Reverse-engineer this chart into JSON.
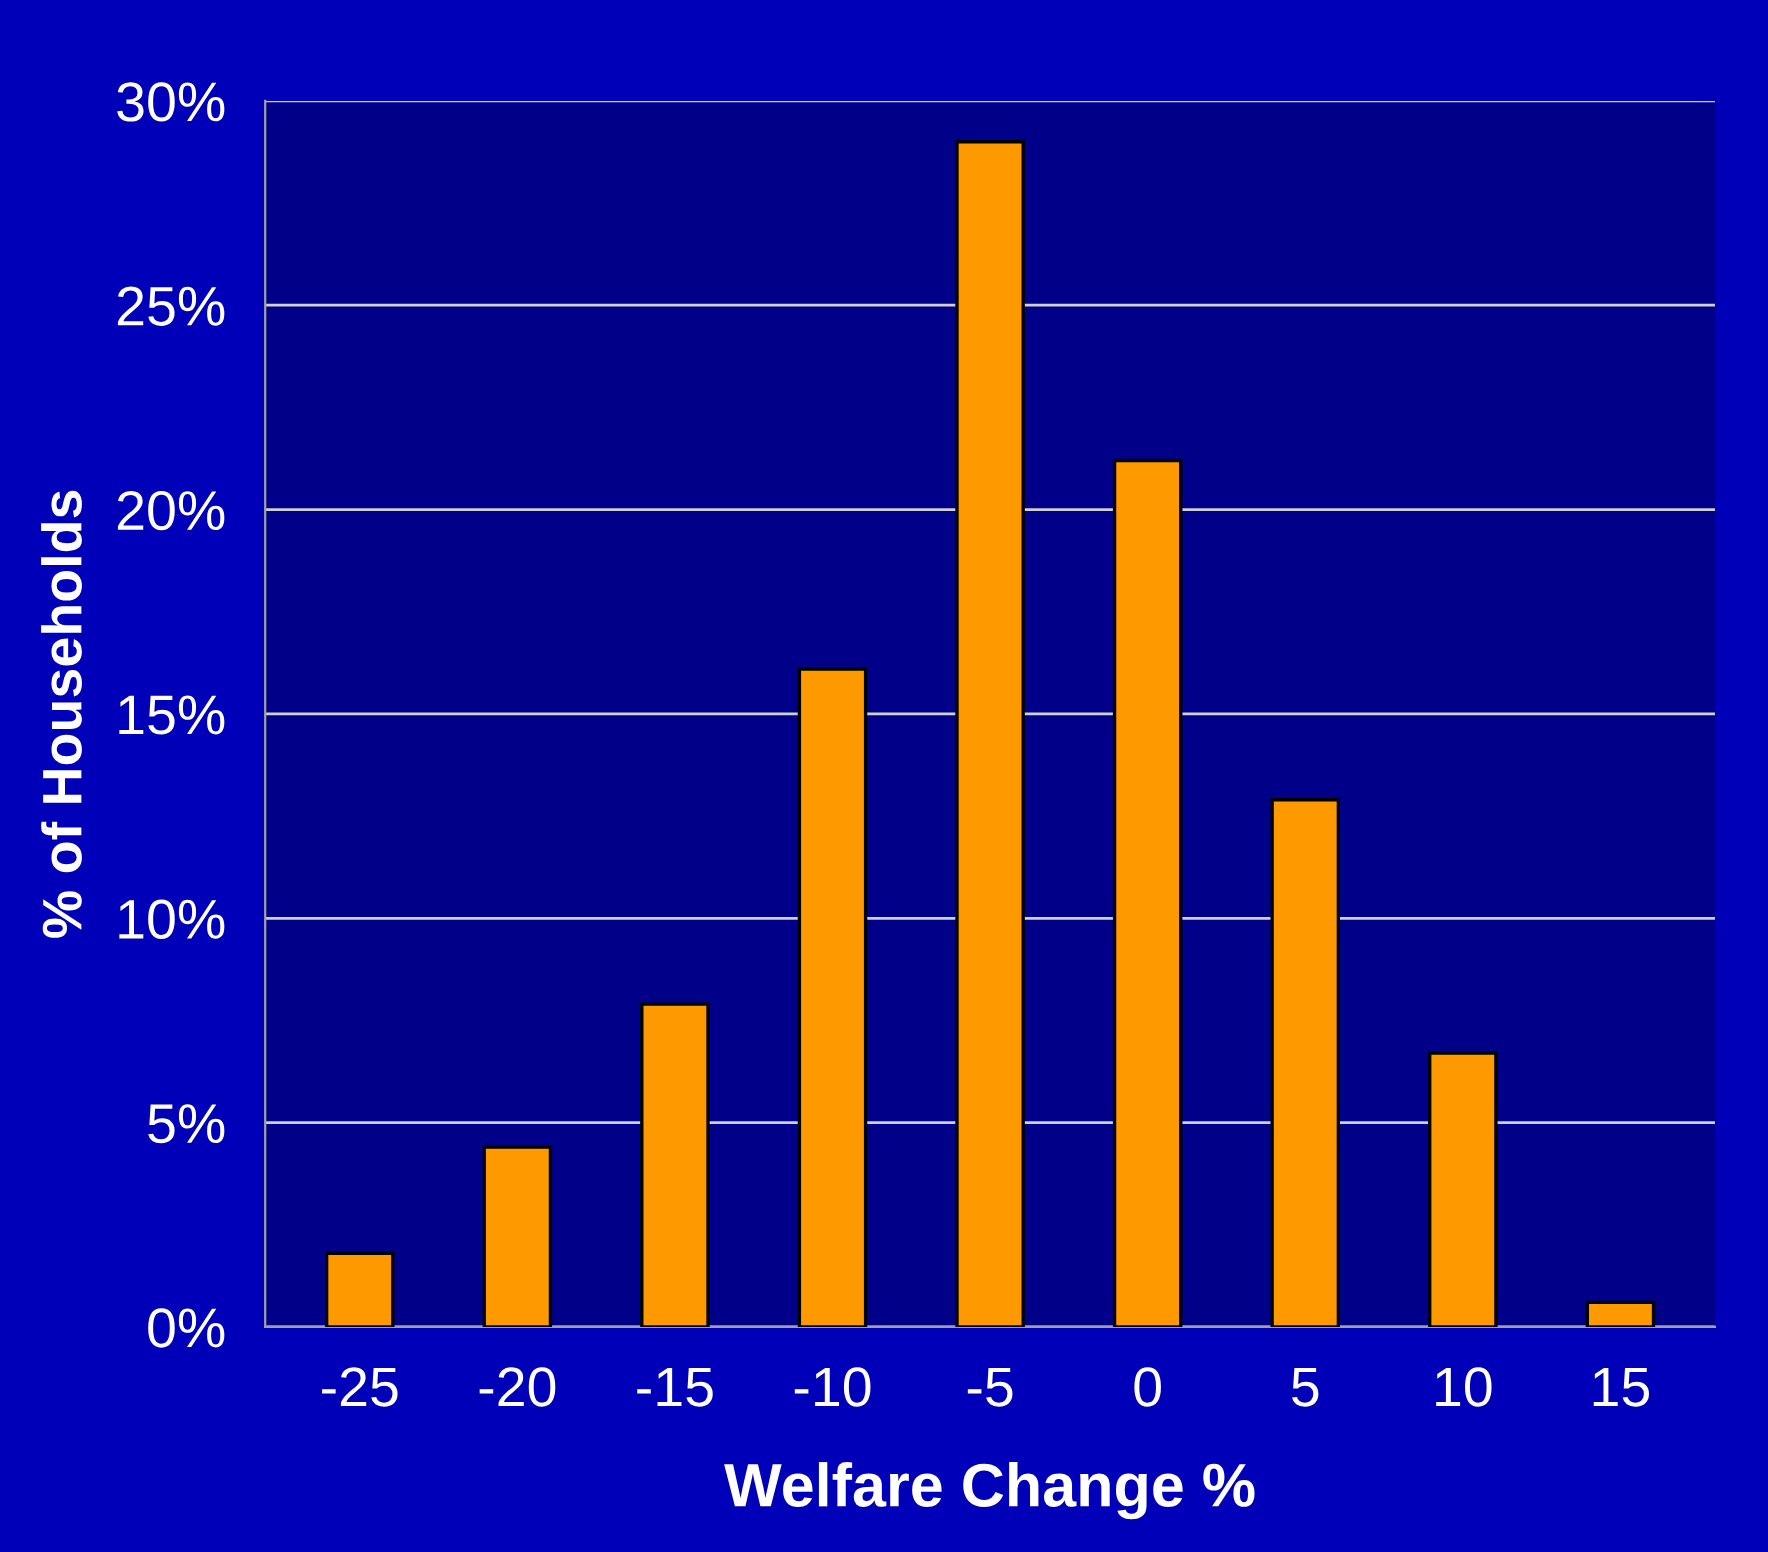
{
  "chart_data": {
    "type": "bar",
    "xlabel": "Welfare Change %",
    "ylabel": "% of Households",
    "categories": [
      "-25",
      "-20",
      "-15",
      "-10",
      "-5",
      "0",
      "5",
      "10",
      "15"
    ],
    "values": [
      1.8,
      4.4,
      7.9,
      16.1,
      29.0,
      21.2,
      12.9,
      6.7,
      0.6
    ],
    "color": "#ff9900",
    "ylim": [
      0,
      30
    ],
    "yticks": [
      {
        "value": 0,
        "label": "0%"
      },
      {
        "value": 5,
        "label": "5%"
      },
      {
        "value": 10,
        "label": "10%"
      },
      {
        "value": 15,
        "label": "15%"
      },
      {
        "value": 20,
        "label": "20%"
      },
      {
        "value": 25,
        "label": "25%"
      },
      {
        "value": 30,
        "label": "30%"
      }
    ],
    "grid": "y"
  }
}
